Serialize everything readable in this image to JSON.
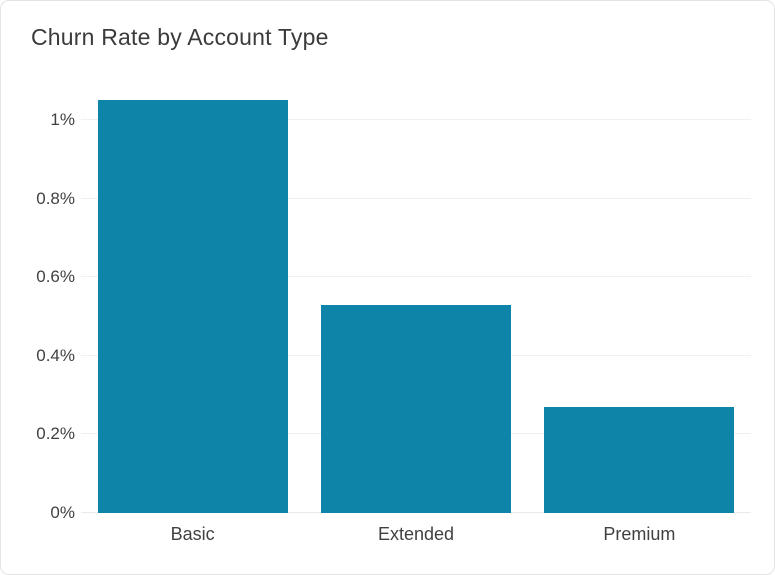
{
  "card": {
    "background": "#ffffff",
    "border_color": "#e4e4e4"
  },
  "chart_data": {
    "type": "bar",
    "title": "Churn Rate by Account Type",
    "categories": [
      "Basic",
      "Extended",
      "Premium"
    ],
    "values": [
      1.05,
      0.53,
      0.27
    ],
    "unit": "%",
    "xlabel": "",
    "ylabel": "",
    "ylim": [
      0,
      1.12
    ],
    "yticks": [
      0,
      0.2,
      0.4,
      0.6,
      0.8,
      1
    ],
    "ytick_labels": [
      "0%",
      "0.2%",
      "0.4%",
      "0.6%",
      "0.8%",
      "1%"
    ],
    "grid": true,
    "legend": false,
    "bar_color": "#0d84a8",
    "gridline_color": "#f0f0f0",
    "baseline_color": "#e9e9e9",
    "title_color": "#3b3b3b",
    "label_color": "#414141"
  }
}
